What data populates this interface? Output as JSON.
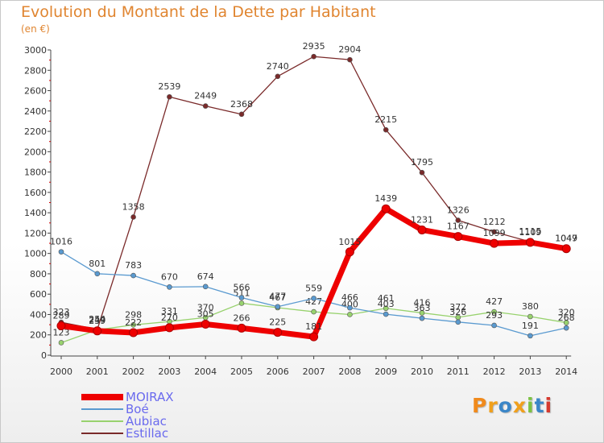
{
  "page": {
    "title": "Evolution du Montant de la Dette par Habitant",
    "subtitle": "(en €)",
    "brand": {
      "letters": [
        "P",
        "r",
        "o",
        "x",
        "i",
        "t",
        "i"
      ],
      "colors": [
        "#f08a1c",
        "#f0a01c",
        "#3a86c8",
        "#f0a01c",
        "#7cc242",
        "#3a86c8",
        "#d6392e"
      ]
    }
  },
  "chart_data": {
    "type": "line",
    "title": "Evolution du Montant de la Dette par Habitant",
    "ylabel": "(en €)",
    "xlabel": "",
    "x": [
      "2000",
      "2001",
      "2002",
      "2003",
      "2004",
      "2005",
      "2006",
      "2007",
      "2008",
      "2009",
      "2010",
      "2011",
      "2012",
      "2013",
      "2014"
    ],
    "ylim": [
      0,
      3000
    ],
    "yticks": [
      "0",
      "200",
      "400",
      "600",
      "800",
      "1000",
      "1200",
      "1400",
      "1600",
      "1800",
      "2000",
      "2200",
      "2400",
      "2600",
      "2800",
      "3000"
    ],
    "grid": false,
    "legend_position": "bottom-left",
    "series": [
      {
        "name": "Estillac",
        "color": "#7a2a2a",
        "values": [
          323,
          254,
          1358,
          2539,
          2449,
          2368,
          2740,
          2935,
          2904,
          2215,
          1795,
          1326,
          1212,
          1115,
          1049
        ]
      },
      {
        "name": "Aubiac",
        "color": "#98d26e",
        "values": [
          123,
          249,
          298,
          331,
          370,
          511,
          467,
          427,
          400,
          461,
          416,
          372,
          427,
          380,
          320
        ]
      },
      {
        "name": "Boé",
        "color": "#5a9ad0",
        "values": [
          1016,
          801,
          783,
          670,
          674,
          566,
          477,
          559,
          466,
          403,
          363,
          326,
          293,
          191,
          268
        ]
      },
      {
        "name": "MOIRAX",
        "color": "#ee0000",
        "values": [
          289,
          239,
          222,
          270,
          305,
          266,
          225,
          181,
          1015,
          1439,
          1231,
          1167,
          1099,
          1109,
          1047
        ]
      }
    ],
    "legend": [
      "MOIRAX",
      "Boé",
      "Aubiac",
      "Estillac"
    ]
  }
}
